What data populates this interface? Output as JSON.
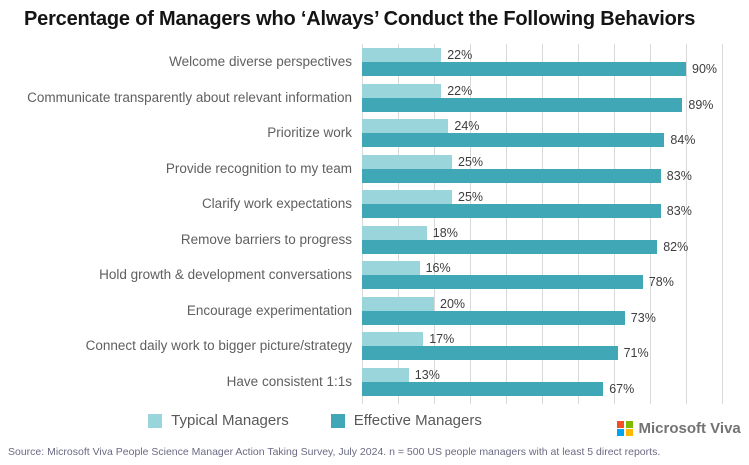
{
  "title": "Percentage of Managers who ‘Always’ Conduct the Following Behaviors",
  "chart_data": {
    "type": "bar",
    "orientation": "horizontal",
    "title": "Percentage of Managers who ‘Always’ Conduct the Following Behaviors",
    "xlabel": "",
    "ylabel": "",
    "xlim": [
      0,
      100
    ],
    "grid": "vertical gridlines every 10%",
    "legend_position": "bottom-center",
    "value_suffix": "%",
    "categories": [
      "Welcome diverse perspectives",
      "Communicate transparently about relevant information",
      "Prioritize work",
      "Provide recognition to my team",
      "Clarify work expectations",
      "Remove barriers to progress",
      "Hold growth & development conversations",
      "Encourage experimentation",
      "Connect daily work to bigger picture/strategy",
      "Have consistent 1:1s"
    ],
    "series": [
      {
        "name": "Typical Managers",
        "color": "#9bd5dc",
        "values": [
          22,
          22,
          24,
          25,
          25,
          18,
          16,
          20,
          17,
          13
        ]
      },
      {
        "name": "Effective Managers",
        "color": "#3fa7b6",
        "values": [
          90,
          89,
          84,
          83,
          83,
          82,
          78,
          73,
          71,
          67
        ]
      }
    ]
  },
  "footer": {
    "source": "Source: Microsoft Viva People Science Manager Action Taking Survey, July 2024. n = 500 US people managers with at least 5 direct reports."
  },
  "branding": {
    "logo_text": "Microsoft Viva",
    "logo_colors": {
      "red": "#f25022",
      "green": "#7fba00",
      "blue": "#00a4ef",
      "yellow": "#ffb900"
    }
  }
}
